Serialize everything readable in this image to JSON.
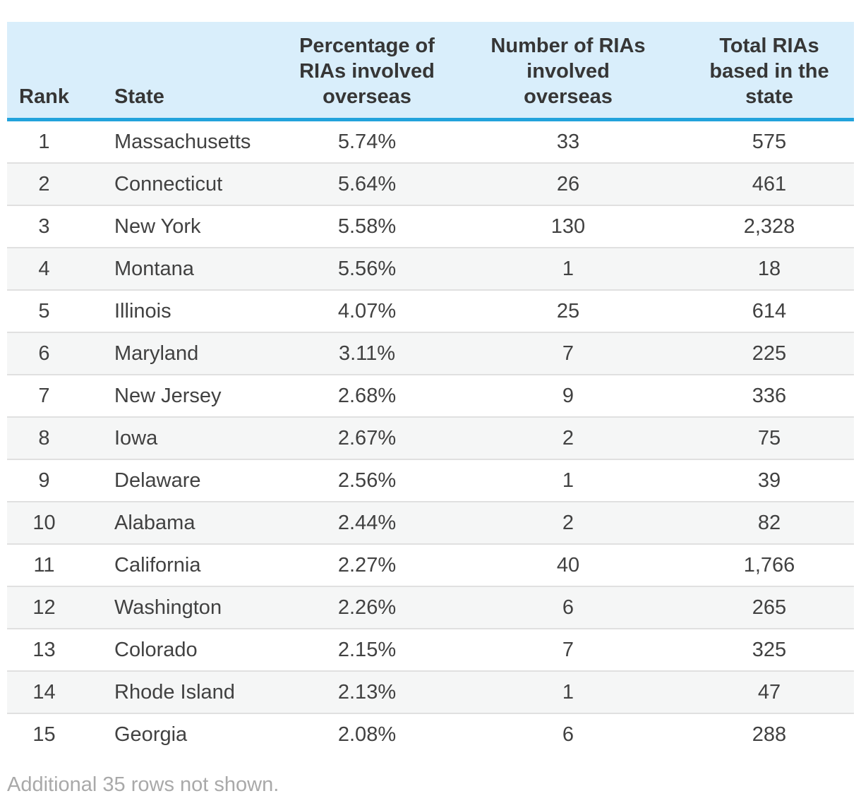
{
  "table": {
    "columns": [
      {
        "label": "Rank"
      },
      {
        "label": "State"
      },
      {
        "label": "Percentage of\nRIAs involved\noverseas"
      },
      {
        "label": "Number of RIAs\ninvolved\noverseas"
      },
      {
        "label": "Total RIAs\nbased in the\nstate"
      }
    ],
    "rows": [
      {
        "rank": "1",
        "state": "Massachusetts",
        "pct": "5.74%",
        "num": "33",
        "total": "575"
      },
      {
        "rank": "2",
        "state": "Connecticut",
        "pct": "5.64%",
        "num": "26",
        "total": "461"
      },
      {
        "rank": "3",
        "state": "New York",
        "pct": "5.58%",
        "num": "130",
        "total": "2,328"
      },
      {
        "rank": "4",
        "state": "Montana",
        "pct": "5.56%",
        "num": "1",
        "total": "18"
      },
      {
        "rank": "5",
        "state": "Illinois",
        "pct": "4.07%",
        "num": "25",
        "total": "614"
      },
      {
        "rank": "6",
        "state": "Maryland",
        "pct": "3.11%",
        "num": "7",
        "total": "225"
      },
      {
        "rank": "7",
        "state": "New Jersey",
        "pct": "2.68%",
        "num": "9",
        "total": "336"
      },
      {
        "rank": "8",
        "state": "Iowa",
        "pct": "2.67%",
        "num": "2",
        "total": "75"
      },
      {
        "rank": "9",
        "state": "Delaware",
        "pct": "2.56%",
        "num": "1",
        "total": "39"
      },
      {
        "rank": "10",
        "state": "Alabama",
        "pct": "2.44%",
        "num": "2",
        "total": "82"
      },
      {
        "rank": "11",
        "state": "California",
        "pct": "2.27%",
        "num": "40",
        "total": "1,766"
      },
      {
        "rank": "12",
        "state": "Washington",
        "pct": "2.26%",
        "num": "6",
        "total": "265"
      },
      {
        "rank": "13",
        "state": "Colorado",
        "pct": "2.15%",
        "num": "7",
        "total": "325"
      },
      {
        "rank": "14",
        "state": "Rhode Island",
        "pct": "2.13%",
        "num": "1",
        "total": "47"
      },
      {
        "rank": "15",
        "state": "Georgia",
        "pct": "2.08%",
        "num": "6",
        "total": "288"
      }
    ],
    "footer_note": "Additional 35 rows not shown."
  },
  "colors": {
    "header_bg": "#d9eefb",
    "header_border": "#22a3dc",
    "alt_row_bg": "#f5f6f6",
    "row_border": "#e0e0e0",
    "header_text": "#363636",
    "body_text": "#414141",
    "note_text": "#a9a9a9"
  },
  "chart_data": {
    "type": "table",
    "columns": [
      "Rank",
      "State",
      "Percentage of RIAs involved overseas",
      "Number of RIAs involved overseas",
      "Total RIAs based in the state"
    ],
    "rows": [
      [
        1,
        "Massachusetts",
        "5.74%",
        33,
        575
      ],
      [
        2,
        "Connecticut",
        "5.64%",
        26,
        461
      ],
      [
        3,
        "New York",
        "5.58%",
        130,
        2328
      ],
      [
        4,
        "Montana",
        "5.56%",
        1,
        18
      ],
      [
        5,
        "Illinois",
        "4.07%",
        25,
        614
      ],
      [
        6,
        "Maryland",
        "3.11%",
        7,
        225
      ],
      [
        7,
        "New Jersey",
        "2.68%",
        9,
        336
      ],
      [
        8,
        "Iowa",
        "2.67%",
        2,
        75
      ],
      [
        9,
        "Delaware",
        "2.56%",
        1,
        39
      ],
      [
        10,
        "Alabama",
        "2.44%",
        2,
        82
      ],
      [
        11,
        "California",
        "2.27%",
        40,
        1766
      ],
      [
        12,
        "Washington",
        "2.26%",
        6,
        265
      ],
      [
        13,
        "Colorado",
        "2.15%",
        7,
        325
      ],
      [
        14,
        "Rhode Island",
        "2.13%",
        1,
        47
      ],
      [
        15,
        "Georgia",
        "2.08%",
        6,
        288
      ]
    ],
    "footnote": "Additional 35 rows not shown.",
    "layout": {
      "zebra_striping": true,
      "header_position": "top",
      "grid": "horizontal-only"
    }
  }
}
